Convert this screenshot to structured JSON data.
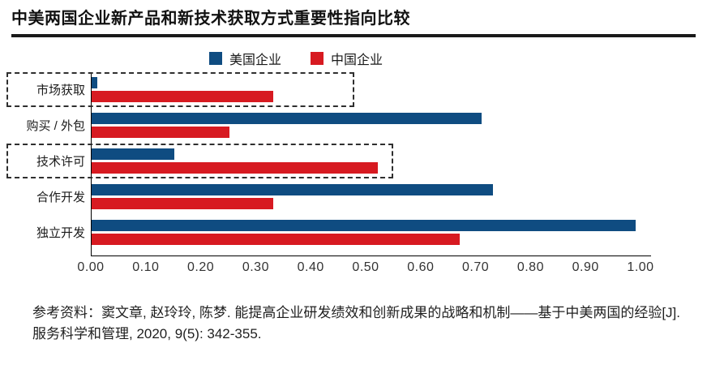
{
  "title": "中美两国企业新产品和新技术获取方式重要性指向比较",
  "legend": [
    {
      "label": "美国企业",
      "color": "#0F4C81"
    },
    {
      "label": "中国企业",
      "color": "#D71A21"
    }
  ],
  "chart_data": {
    "type": "bar",
    "orientation": "horizontal",
    "title": "中美两国企业新产品和新技术获取方式重要性指向比较",
    "categories": [
      "市场获取",
      "购买 / 外包",
      "技术许可",
      "合作开发",
      "独立开发"
    ],
    "series": [
      {
        "name": "美国企业",
        "color": "#0F4C81",
        "values": [
          0.01,
          0.71,
          0.15,
          0.73,
          0.99
        ]
      },
      {
        "name": "中国企业",
        "color": "#D71A21",
        "values": [
          0.33,
          0.25,
          0.52,
          0.33,
          0.67
        ]
      }
    ],
    "xlim": [
      0,
      1
    ],
    "xticks": [
      "0.00",
      "0.10",
      "0.20",
      "0.30",
      "0.40",
      "0.50",
      "0.60",
      "0.70",
      "0.80",
      "0.90",
      "1.00"
    ],
    "grid": false,
    "legend_position": "top",
    "highlights": [
      {
        "category": "市场获取",
        "to_value": 0.48
      },
      {
        "category": "技术许可",
        "to_value": 0.55
      }
    ]
  },
  "footnote": "参考资料：窦文章, 赵玲玲, 陈梦. 能提高企业研发绩效和创新成果的战略和机制——基于中美两国的经验[J]. 服务科学和管理, 2020, 9(5): 342-355."
}
